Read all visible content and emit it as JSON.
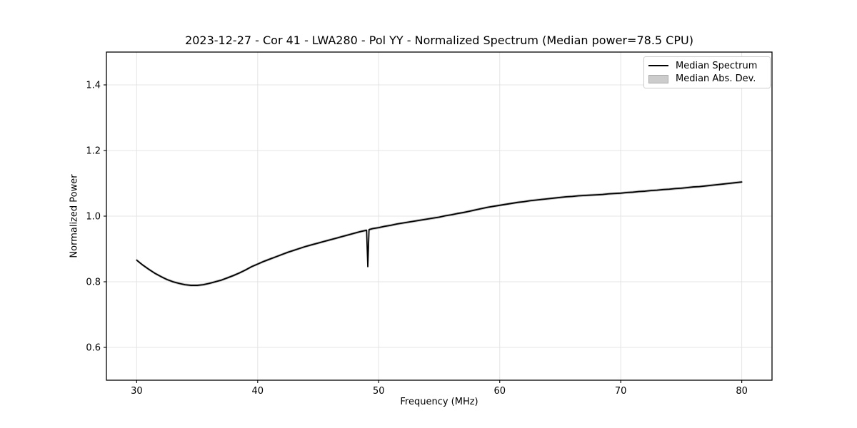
{
  "figure": {
    "background": "#ffffff"
  },
  "legend": {
    "items": [
      {
        "label": "Median Spectrum",
        "type": "line",
        "color": "#000000"
      },
      {
        "label": "Median Abs. Dev.",
        "type": "patch",
        "fill": "#cccccc",
        "edge": "#ababab"
      }
    ]
  },
  "chart_data": {
    "type": "line",
    "title": "2023-12-27 - Cor 41 - LWA280 - Pol YY - Normalized Spectrum (Median power=78.5 CPU)",
    "xlabel": "Frequency (MHz)",
    "ylabel": "Normalized Power",
    "xlim": [
      27.5,
      82.5
    ],
    "ylim": [
      0.5,
      1.5
    ],
    "xticks": [
      30,
      40,
      50,
      60,
      70,
      80
    ],
    "xtick_labels": [
      "30",
      "40",
      "50",
      "60",
      "70",
      "80"
    ],
    "yticks": [
      0.6,
      0.8,
      1.0,
      1.2,
      1.4
    ],
    "ytick_labels": [
      "0.6",
      "0.8",
      "1.0",
      "1.2",
      "1.4"
    ],
    "grid": true,
    "grid_color": "#e4e4e4",
    "legend_position": "upper right",
    "annotations": [
      "narrow RFI notch near 49.1 MHz dipping to ~0.85"
    ],
    "x": [
      30,
      30.5,
      31,
      31.5,
      32,
      32.5,
      33,
      33.5,
      34,
      34.5,
      35,
      35.5,
      36,
      36.5,
      37,
      37.5,
      38,
      38.5,
      39,
      39.5,
      40,
      40.5,
      41,
      41.5,
      42,
      42.5,
      43,
      43.5,
      44,
      44.5,
      45,
      45.5,
      46,
      46.5,
      47,
      47.5,
      48,
      48.5,
      49,
      49.1,
      49.2,
      49.5,
      50,
      50.5,
      51,
      51.5,
      52,
      52.5,
      53,
      53.5,
      54,
      54.5,
      55,
      55.5,
      56,
      56.5,
      57,
      57.5,
      58,
      58.5,
      59,
      59.5,
      60,
      60.5,
      61,
      61.5,
      62,
      62.5,
      63,
      63.5,
      64,
      64.5,
      65,
      65.5,
      66,
      66.5,
      67,
      67.5,
      68,
      68.5,
      69,
      69.5,
      70,
      70.5,
      71,
      71.5,
      72,
      72.5,
      73,
      73.5,
      74,
      74.5,
      75,
      75.5,
      76,
      76.5,
      77,
      77.5,
      78,
      78.5,
      79,
      79.5,
      80
    ],
    "y": [
      0.866,
      0.851,
      0.838,
      0.826,
      0.816,
      0.807,
      0.8,
      0.795,
      0.791,
      0.789,
      0.789,
      0.791,
      0.795,
      0.8,
      0.805,
      0.812,
      0.819,
      0.827,
      0.836,
      0.846,
      0.854,
      0.862,
      0.869,
      0.876,
      0.883,
      0.89,
      0.896,
      0.902,
      0.908,
      0.913,
      0.918,
      0.923,
      0.928,
      0.933,
      0.938,
      0.943,
      0.948,
      0.953,
      0.957,
      0.846,
      0.959,
      0.962,
      0.965,
      0.969,
      0.972,
      0.976,
      0.979,
      0.982,
      0.985,
      0.988,
      0.991,
      0.994,
      0.997,
      1.001,
      1.004,
      1.008,
      1.011,
      1.015,
      1.019,
      1.023,
      1.027,
      1.03,
      1.033,
      1.036,
      1.039,
      1.042,
      1.044,
      1.047,
      1.049,
      1.051,
      1.053,
      1.055,
      1.057,
      1.059,
      1.06,
      1.062,
      1.063,
      1.064,
      1.065,
      1.066,
      1.068,
      1.069,
      1.07,
      1.072,
      1.073,
      1.075,
      1.076,
      1.078,
      1.079,
      1.081,
      1.082,
      1.084,
      1.085,
      1.087,
      1.089,
      1.09,
      1.092,
      1.094,
      1.096,
      1.098,
      1.1,
      1.102,
      1.104
    ],
    "series": [
      {
        "name": "Median Spectrum",
        "type": "line",
        "color": "#000000",
        "linewidth": 1.8
      },
      {
        "name": "Median Abs. Dev.",
        "type": "band",
        "fill": "#c2c2c2",
        "halfwidth": 0.004
      }
    ]
  }
}
